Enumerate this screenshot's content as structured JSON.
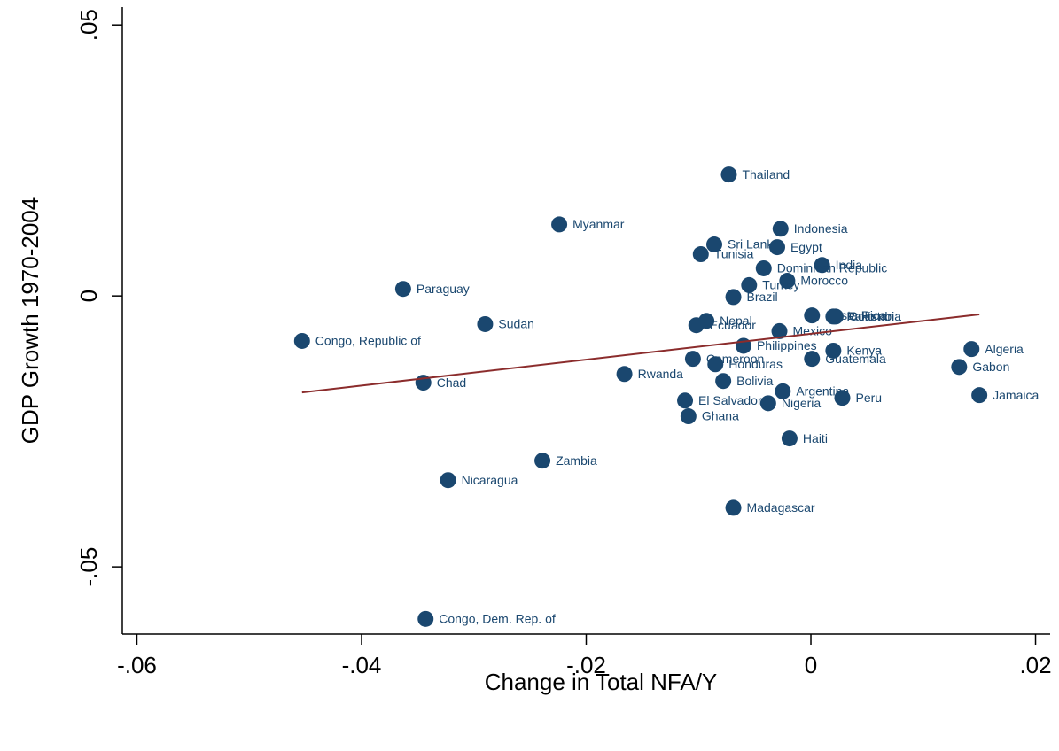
{
  "chart_data": {
    "type": "scatter",
    "x_label": "Change in Total NFA/Y",
    "y_label": "GDP Growth 1970-2004",
    "color": "#1a476f",
    "labels": [
      "Thailand",
      "Myanmar",
      "Indonesia",
      "Sri Lanka",
      "Egypt",
      "Tunisia",
      "India",
      "Dominican Republic",
      "Morocco",
      "Turkey",
      "Paraguay",
      "Brazil",
      "Nepal",
      "Ecuador",
      "Sudan",
      "Costa Rica",
      "Pakistan",
      "Colombia",
      "Mexico",
      "Congo, Republic of",
      "Philippines",
      "Algeria",
      "Kenya",
      "Cameroon",
      "Guatemala",
      "Honduras",
      "Gabon",
      "Rwanda",
      "Chad",
      "Bolivia",
      "Argentina",
      "Jamaica",
      "El Salvador",
      "Nigeria",
      "Peru",
      "Ghana",
      "Haiti",
      "Zambia",
      "Nicaragua",
      "Madagascar",
      "Congo, Dem. Rep. of"
    ],
    "x": [
      -0.0073,
      -0.0224,
      -0.0027,
      -0.0086,
      -0.003,
      -0.0098,
      0.001,
      -0.0042,
      -0.0021,
      -0.0055,
      -0.0363,
      -0.0069,
      -0.0093,
      -0.0102,
      -0.029,
      0.0001,
      0.002,
      0.0022,
      -0.0028,
      -0.0453,
      -0.006,
      0.0143,
      0.002,
      -0.0105,
      0.0001,
      -0.0085,
      0.0132,
      -0.0166,
      -0.0345,
      -0.0078,
      -0.0025,
      0.015,
      -0.0112,
      -0.0038,
      0.0028,
      -0.0109,
      -0.0019,
      -0.0239,
      -0.0323,
      -0.0069,
      -0.0343
    ],
    "values": [
      0.0224,
      0.0132,
      0.0124,
      0.0095,
      0.009,
      0.0077,
      0.0057,
      0.0051,
      0.0028,
      0.002,
      0.0013,
      -0.0002,
      -0.0046,
      -0.0054,
      -0.0052,
      -0.0036,
      -0.0038,
      -0.0038,
      -0.0065,
      -0.0083,
      -0.0092,
      -0.0098,
      -0.0101,
      -0.0116,
      -0.0116,
      -0.0126,
      -0.0131,
      -0.0144,
      -0.016,
      -0.0157,
      -0.0176,
      -0.0183,
      -0.0193,
      -0.0198,
      -0.0188,
      -0.0222,
      -0.0263,
      -0.0304,
      -0.034,
      -0.0391,
      -0.0596
    ],
    "fit_line": {
      "x": [
        -0.0453,
        0.015
      ],
      "values": [
        -0.0178,
        -0.0034
      ],
      "color": "#8b2c2c"
    },
    "xlim": [
      -0.0613,
      0.0213
    ],
    "ylim": [
      -0.0624,
      0.0533
    ],
    "xticks": [
      {
        "value": -0.06,
        "label": "-.06"
      },
      {
        "value": -0.04,
        "label": "-.04"
      },
      {
        "value": -0.02,
        "label": "-.02"
      },
      0,
      {
        "value": 0.02,
        "label": ".02"
      }
    ],
    "yticks": [
      {
        "value": -0.05,
        "label": "-.05"
      },
      0,
      {
        "value": 0.05,
        "label": ".05"
      }
    ]
  }
}
